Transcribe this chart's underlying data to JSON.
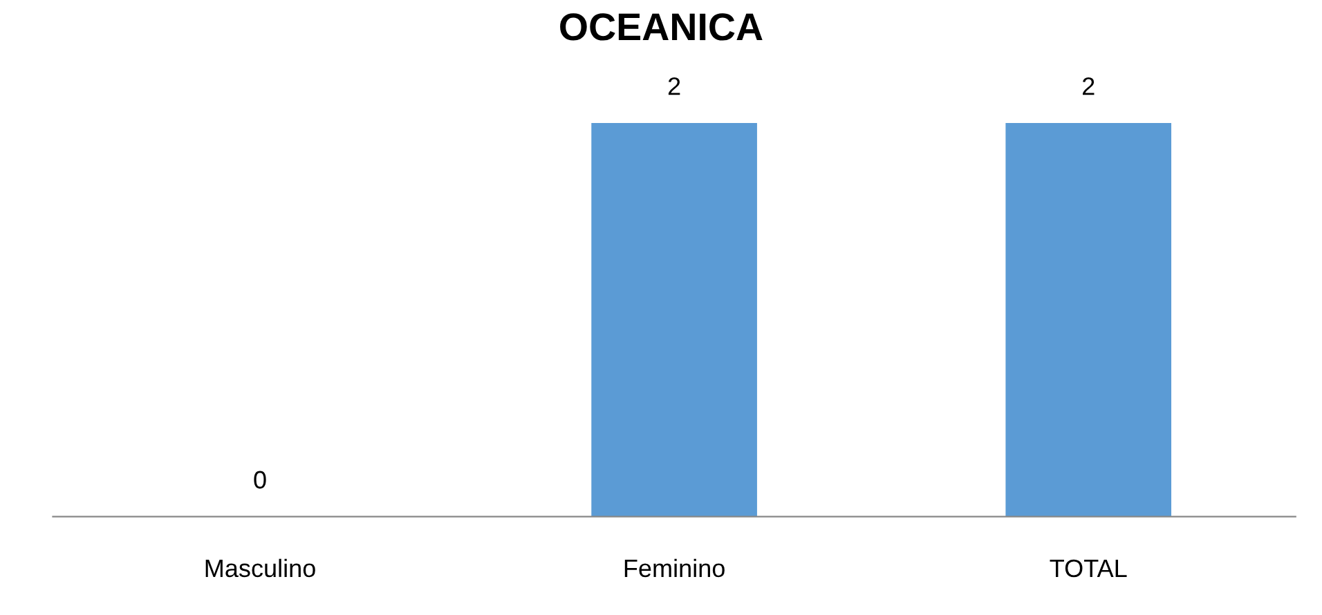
{
  "chart_data": {
    "type": "bar",
    "title": "OCEANICA",
    "categories": [
      "Masculino",
      "Feminino",
      "TOTAL"
    ],
    "values": [
      0,
      2,
      2
    ],
    "color": "#5b9bd5",
    "data_labels": true,
    "grid": false
  }
}
